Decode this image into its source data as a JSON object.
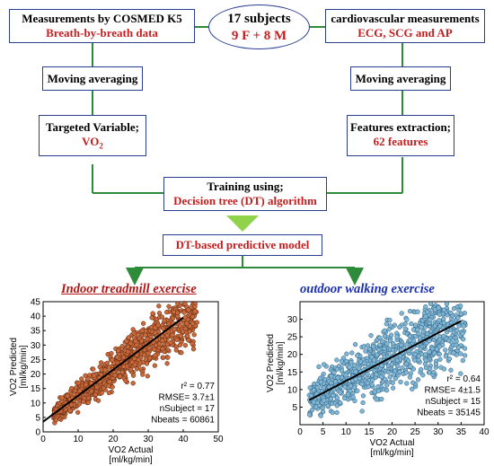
{
  "center": {
    "title": "17 subjects",
    "subtitle": "9 F + 8 M"
  },
  "left": {
    "top_label": "Measurements by COSMED K5",
    "top_sub": "Breath-by-breath data",
    "avg_label": "Moving averaging",
    "target_label": "Targeted Variable;",
    "target_var": "VO",
    "target_var_sub": "2"
  },
  "right": {
    "top_label": "cardiovascular measurements",
    "top_sub": "ECG, SCG and AP",
    "avg_label": "Moving averaging",
    "feat_label": "Features extraction;",
    "feat_sub": "62 features"
  },
  "training": {
    "label": "Training using;",
    "sub": "Decision tree (DT) algorithm"
  },
  "model": {
    "label": "DT-based predictive model"
  },
  "colors": {
    "box_border": "#2a3f8f",
    "accent_red": "#c41e1e",
    "link_green": "#2e8b3a",
    "arrow_green": "#8fd34a",
    "indoor_points": "#c86a3a",
    "outdoor_points": "#7fb6d6",
    "indoor_title": "#b01818",
    "outdoor_title": "#1a2fb0"
  },
  "chart_data": [
    {
      "type": "scatter",
      "title": "Indoor treadmill exercise",
      "xlabel": "VO2 Actual",
      "xlabel_unit": "[ml/kg/min]",
      "ylabel": "VO2 Predicted",
      "ylabel_unit": "[ml/kg/min]",
      "xlim": [
        0,
        50
      ],
      "ylim": [
        0,
        45
      ],
      "xticks": [
        0,
        10,
        20,
        30,
        40,
        50
      ],
      "yticks": [
        0,
        5,
        10,
        15,
        20,
        25,
        30,
        35,
        40,
        45
      ],
      "fit_line": {
        "x": [
          0,
          40
        ],
        "y": [
          3.5,
          39.5
        ]
      },
      "stats": [
        "r² = 0.77",
        "RMSE= 3.7±1",
        "nSubject = 17",
        "Nbeats = 60861"
      ],
      "point_cloud": {
        "x_range": [
          3,
          44
        ],
        "trend": "positive",
        "n": 60861
      }
    },
    {
      "type": "scatter",
      "title": "outdoor walking exercise",
      "xlabel": "VO2 Actual",
      "xlabel_unit": "[ml/kg/min]",
      "ylabel": "VO2 Predicted",
      "ylabel_unit": "[ml/kg/min]",
      "xlim": [
        0,
        40
      ],
      "ylim": [
        0,
        35
      ],
      "xticks": [
        0,
        5,
        10,
        15,
        20,
        25,
        30,
        35,
        40
      ],
      "yticks": [
        5,
        10,
        15,
        20,
        25,
        30
      ],
      "fit_line": {
        "x": [
          2,
          35
        ],
        "y": [
          7,
          29.5
        ]
      },
      "stats": [
        "r² = 0.64",
        "RMSE= 4±1.5",
        "nSubject = 15",
        "Nbeats = 35145"
      ],
      "point_cloud": {
        "x_range": [
          2,
          36
        ],
        "trend": "positive",
        "n": 35145
      }
    }
  ]
}
